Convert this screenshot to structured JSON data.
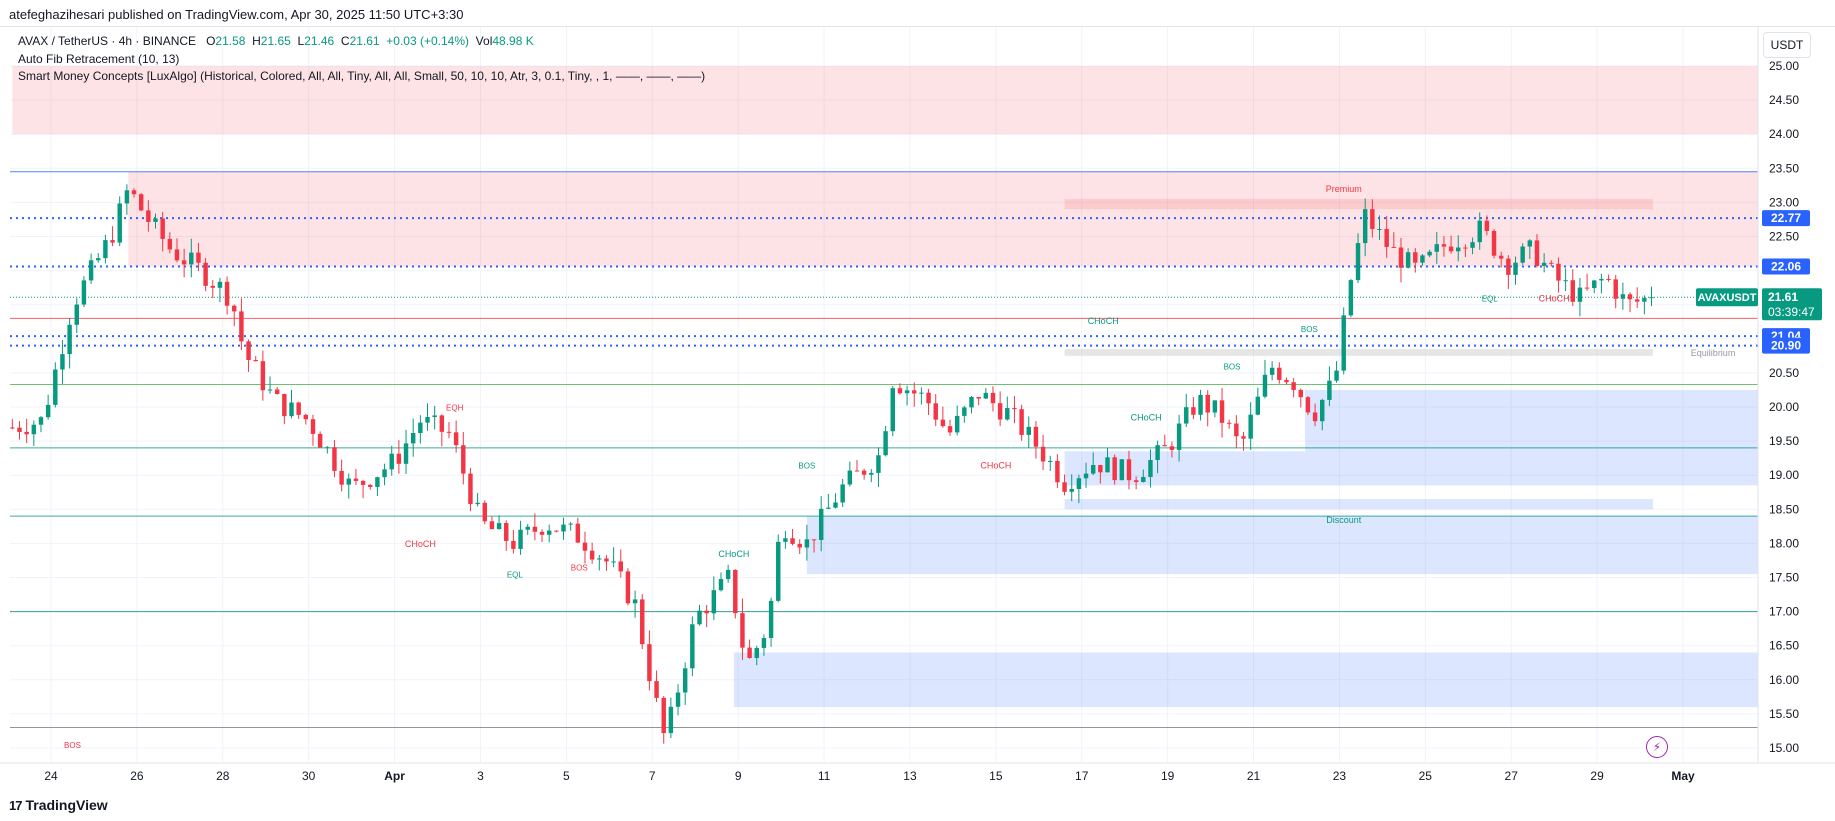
{
  "header": {
    "publisher_line": "atefeghazihesari published on TradingView.com, Apr 30, 2025 11:50 UTC+3:30"
  },
  "legend": {
    "symbol": "AVAX / TetherUS · 4h · BINANCE",
    "open_label": "O",
    "open": "21.58",
    "high_label": "H",
    "high": "21.65",
    "low_label": "L",
    "low": "21.46",
    "close_label": "C",
    "close": "21.61",
    "change": "+0.03 (+0.14%)",
    "vol_label": "Vol",
    "volume": "48.98 K",
    "indicator1": "Auto Fib Retracement (10, 13)",
    "indicator2": "Smart Money Concepts [LuxAlgo] (Historical, Colored, All, All, Tiny, All, All, Small, 50, 10, 10, Atr, 3, 0.1, Tiny, , 1, ——, ——, ——)"
  },
  "footer": {
    "logo_mark": "17",
    "logo_text": "TradingView"
  },
  "colors": {
    "up": "#089981",
    "down": "#f23645",
    "grid": "#f0f3fa",
    "premium_fill": "#f23645",
    "discount_fill": "#2962ff",
    "equilibrium_fill": "#c8c8c8",
    "axis_text": "#131722",
    "price_tag_blue": "#2962ff",
    "last_price_green": "#089981"
  },
  "chart_data": {
    "type": "candlestick",
    "symbol": "AVAXUSDT",
    "currency": "USDT",
    "interval": "4h",
    "ylim": [
      14.85,
      25.4
    ],
    "y_ticks": [
      15.0,
      15.5,
      16.0,
      16.5,
      17.0,
      17.5,
      18.0,
      18.5,
      19.0,
      19.5,
      20.0,
      20.5,
      21.0,
      21.5,
      22.0,
      22.5,
      23.0,
      23.5,
      24.0,
      24.5,
      25.0
    ],
    "y_tick_labels": [
      "15.00",
      "15.50",
      "16.00",
      "16.50",
      "17.00",
      "17.50",
      "18.00",
      "18.50",
      "19.00",
      "19.50",
      "20.00",
      "20.50",
      "21.00",
      "21.50",
      "22.00",
      "22.50",
      "23.00",
      "23.50",
      "24.00",
      "24.50",
      "25.00"
    ],
    "x_range_days": [
      -0.9,
      37.3
    ],
    "x_ticks": [
      {
        "day": 0,
        "label": "24"
      },
      {
        "day": 2,
        "label": "26"
      },
      {
        "day": 4,
        "label": "28"
      },
      {
        "day": 6,
        "label": "30"
      },
      {
        "day": 8,
        "label": "Apr"
      },
      {
        "day": 10,
        "label": "3"
      },
      {
        "day": 12,
        "label": "5"
      },
      {
        "day": 14,
        "label": "7"
      },
      {
        "day": 16,
        "label": "9"
      },
      {
        "day": 18,
        "label": "11"
      },
      {
        "day": 20,
        "label": "13"
      },
      {
        "day": 22,
        "label": "15"
      },
      {
        "day": 24,
        "label": "17"
      },
      {
        "day": 26,
        "label": "19"
      },
      {
        "day": 28,
        "label": "21"
      },
      {
        "day": 30,
        "label": "23"
      },
      {
        "day": 32,
        "label": "25"
      },
      {
        "day": 34,
        "label": "27"
      },
      {
        "day": 36,
        "label": "29"
      },
      {
        "day": 38,
        "label": "May"
      }
    ],
    "price_tags": [
      {
        "value": 22.77,
        "label": "22.77"
      },
      {
        "value": 22.06,
        "label": "22.06"
      },
      {
        "value": 21.04,
        "label": "21.04"
      },
      {
        "value": 20.9,
        "label": "20.90"
      }
    ],
    "last_price": {
      "value": 21.61,
      "label": "21.61",
      "symbol_label": "AVAXUSDT",
      "countdown": "03:39:47"
    },
    "zones": [
      {
        "kind": "premium",
        "day_start": -0.9,
        "day_end": 40.2,
        "low": 24.0,
        "high": 25.0
      },
      {
        "kind": "premium",
        "day_start": 1.8,
        "day_end": 40.2,
        "low": 22.06,
        "high": 23.45
      },
      {
        "kind": "premium",
        "day_start": 23.6,
        "day_end": 37.3,
        "low": 22.9,
        "high": 23.05
      },
      {
        "kind": "equilibrium",
        "day_start": 23.6,
        "day_end": 37.3,
        "low": 20.75,
        "high": 20.85
      },
      {
        "kind": "discount",
        "day_start": 29.2,
        "day_end": 40.2,
        "low": 19.35,
        "high": 20.25
      },
      {
        "kind": "discount",
        "day_start": 23.6,
        "day_end": 40.2,
        "low": 18.85,
        "high": 19.35
      },
      {
        "kind": "discount",
        "day_start": 23.6,
        "day_end": 37.3,
        "low": 18.5,
        "high": 18.65
      },
      {
        "kind": "discount",
        "day_start": 17.6,
        "day_end": 40.2,
        "low": 17.55,
        "high": 18.4
      },
      {
        "kind": "discount",
        "day_start": 15.9,
        "day_end": 40.2,
        "low": 15.6,
        "high": 16.4
      }
    ],
    "fib_levels": [
      {
        "value": 23.45,
        "color": "#2962ff"
      },
      {
        "value": 21.3,
        "color": "#f23645"
      },
      {
        "value": 20.33,
        "color": "#4caf50"
      },
      {
        "value": 19.4,
        "color": "#089981"
      },
      {
        "value": 18.4,
        "color": "#089981"
      },
      {
        "value": 17.0,
        "color": "#00897b"
      },
      {
        "value": 15.3,
        "color": "#787b86"
      }
    ],
    "dotted_levels": [
      22.77,
      22.06,
      21.04,
      20.9
    ],
    "structure_labels": [
      {
        "text": "Premium",
        "day": 30.1,
        "value": 23.15,
        "color": "#f23645"
      },
      {
        "text": "Equilibrium",
        "day": 38.7,
        "value": 20.75,
        "color": "#9598a1"
      },
      {
        "text": "Discount",
        "day": 30.1,
        "value": 18.3,
        "color": "#089981"
      },
      {
        "text": "CHoCH",
        "day": 24.5,
        "value": 21.22,
        "color": "#089981"
      },
      {
        "text": "BOS",
        "day": 29.3,
        "value": 21.1,
        "color": "#089981"
      },
      {
        "text": "BOS",
        "day": 27.5,
        "value": 20.55,
        "color": "#089981"
      },
      {
        "text": "CHoCH",
        "day": 25.5,
        "value": 19.8,
        "color": "#089981"
      },
      {
        "text": "CHoCH",
        "day": 22.0,
        "value": 19.1,
        "color": "#f23645"
      },
      {
        "text": "BOS",
        "day": 17.6,
        "value": 19.1,
        "color": "#089981"
      },
      {
        "text": "CHoCH",
        "day": 15.9,
        "value": 17.8,
        "color": "#089981"
      },
      {
        "text": "EQH",
        "day": 9.4,
        "value": 19.95,
        "color": "#f23645"
      },
      {
        "text": "CHoCH",
        "day": 8.6,
        "value": 17.95,
        "color": "#f23645"
      },
      {
        "text": "EQL",
        "day": 10.8,
        "value": 17.5,
        "color": "#089981"
      },
      {
        "text": "BOS",
        "day": 12.3,
        "value": 17.6,
        "color": "#f23645"
      },
      {
        "text": "BOS",
        "day": 0.5,
        "value": 15.0,
        "color": "#f23645"
      },
      {
        "text": "EQL",
        "day": 33.5,
        "value": 21.55,
        "color": "#089981"
      },
      {
        "text": "CHoCH",
        "day": 35.0,
        "value": 21.55,
        "color": "#f23645"
      }
    ],
    "anchors": [
      {
        "day": -0.9,
        "price": 19.7
      },
      {
        "day": -0.2,
        "price": 19.8
      },
      {
        "day": 0.5,
        "price": 21.5
      },
      {
        "day": 1.4,
        "price": 22.5
      },
      {
        "day": 1.8,
        "price": 23.2
      },
      {
        "day": 2.2,
        "price": 22.8
      },
      {
        "day": 2.8,
        "price": 22.3
      },
      {
        "day": 3.5,
        "price": 22.0
      },
      {
        "day": 4.2,
        "price": 21.6
      },
      {
        "day": 4.5,
        "price": 20.8
      },
      {
        "day": 5.2,
        "price": 20.1
      },
      {
        "day": 6.0,
        "price": 19.8
      },
      {
        "day": 7.0,
        "price": 18.8
      },
      {
        "day": 8.0,
        "price": 19.2
      },
      {
        "day": 8.6,
        "price": 19.8
      },
      {
        "day": 9.3,
        "price": 19.6
      },
      {
        "day": 10.0,
        "price": 18.3
      },
      {
        "day": 10.8,
        "price": 18.0
      },
      {
        "day": 11.5,
        "price": 18.3
      },
      {
        "day": 12.3,
        "price": 18.1
      },
      {
        "day": 13.0,
        "price": 17.7
      },
      {
        "day": 13.6,
        "price": 17.1
      },
      {
        "day": 14.0,
        "price": 15.9
      },
      {
        "day": 14.3,
        "price": 15.1
      },
      {
        "day": 15.0,
        "price": 16.9
      },
      {
        "day": 15.8,
        "price": 17.5
      },
      {
        "day": 16.2,
        "price": 16.2
      },
      {
        "day": 16.7,
        "price": 16.8
      },
      {
        "day": 17.0,
        "price": 18.3
      },
      {
        "day": 17.6,
        "price": 18.0
      },
      {
        "day": 18.4,
        "price": 18.8
      },
      {
        "day": 19.3,
        "price": 19.3
      },
      {
        "day": 19.6,
        "price": 20.4
      },
      {
        "day": 20.4,
        "price": 20.1
      },
      {
        "day": 20.9,
        "price": 19.6
      },
      {
        "day": 21.6,
        "price": 20.2
      },
      {
        "day": 22.3,
        "price": 19.9
      },
      {
        "day": 23.0,
        "price": 19.4
      },
      {
        "day": 23.6,
        "price": 18.9
      },
      {
        "day": 24.3,
        "price": 19.2
      },
      {
        "day": 25.2,
        "price": 19.0
      },
      {
        "day": 26.0,
        "price": 19.4
      },
      {
        "day": 26.7,
        "price": 20.1
      },
      {
        "day": 27.2,
        "price": 19.9
      },
      {
        "day": 27.7,
        "price": 19.4
      },
      {
        "day": 28.4,
        "price": 20.6
      },
      {
        "day": 28.9,
        "price": 20.4
      },
      {
        "day": 29.4,
        "price": 19.9
      },
      {
        "day": 29.9,
        "price": 20.4
      },
      {
        "day": 30.3,
        "price": 22.0
      },
      {
        "day": 30.6,
        "price": 22.8
      },
      {
        "day": 31.2,
        "price": 22.3
      },
      {
        "day": 31.8,
        "price": 22.0
      },
      {
        "day": 32.5,
        "price": 22.4
      },
      {
        "day": 33.3,
        "price": 22.6
      },
      {
        "day": 33.9,
        "price": 22.1
      },
      {
        "day": 34.5,
        "price": 22.3
      },
      {
        "day": 35.0,
        "price": 21.9
      },
      {
        "day": 35.6,
        "price": 21.6
      },
      {
        "day": 36.2,
        "price": 21.9
      },
      {
        "day": 36.7,
        "price": 21.5
      },
      {
        "day": 37.3,
        "price": 21.61
      }
    ]
  }
}
